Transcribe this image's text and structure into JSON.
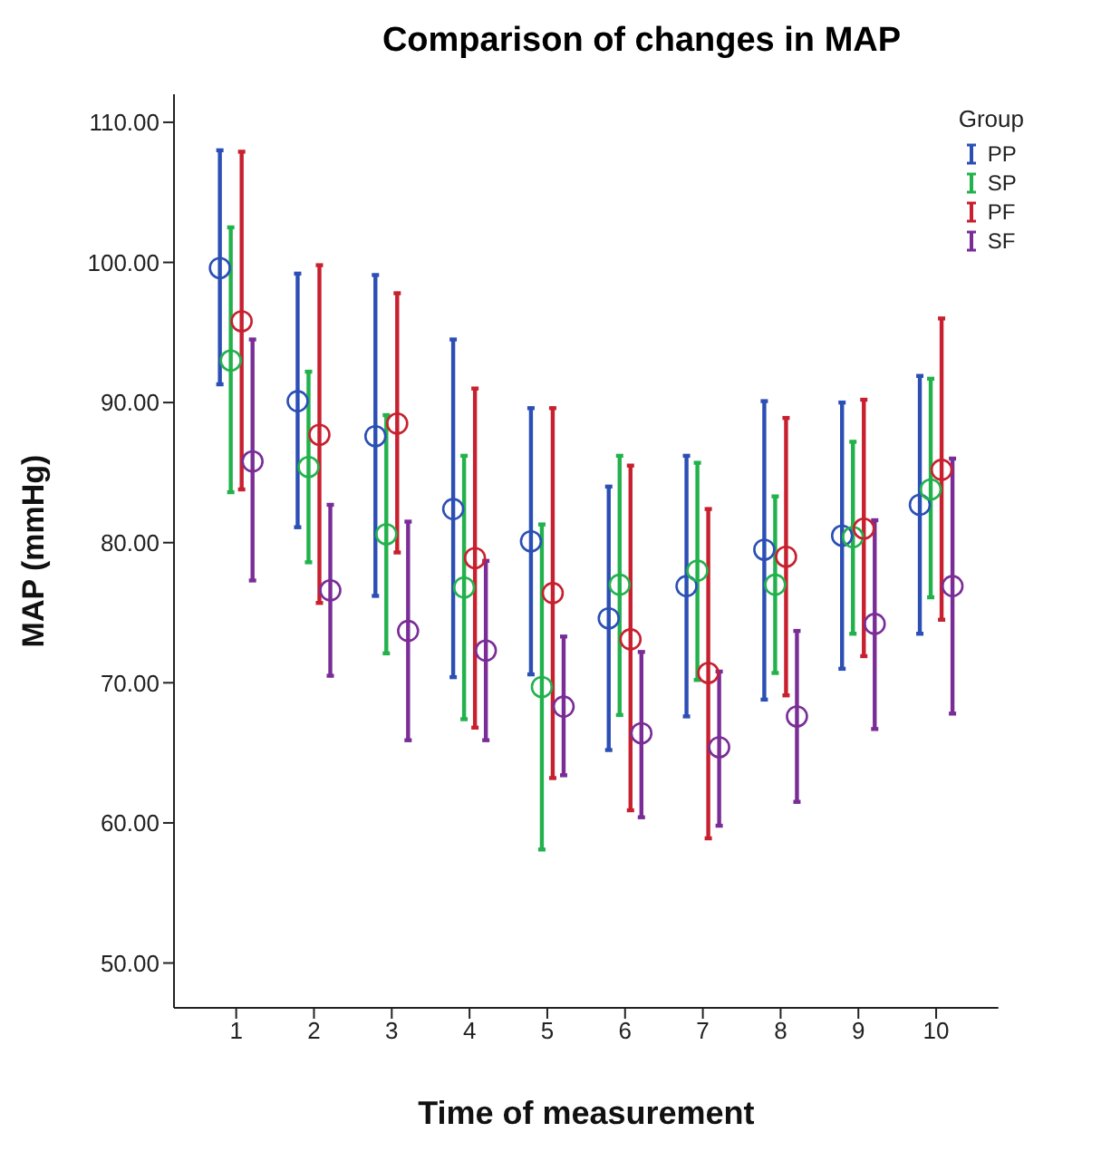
{
  "chart_data": {
    "type": "scatter",
    "title": "Comparison of changes in MAP",
    "xlabel": "Time of measurement",
    "ylabel": "MAP  (mmHg)",
    "legend_title": "Group",
    "legend": "top right",
    "marker": "circle",
    "grid": false,
    "categories": [
      "1",
      "2",
      "3",
      "4",
      "5",
      "6",
      "7",
      "8",
      "9",
      "10"
    ],
    "ylim": [
      46.8,
      112
    ],
    "yticks": [
      {
        "value": 50,
        "label": "50.00"
      },
      {
        "value": 60,
        "label": "60.00"
      },
      {
        "value": 70,
        "label": "70.00"
      },
      {
        "value": 80,
        "label": "80.00"
      },
      {
        "value": 90,
        "label": "90.00"
      },
      {
        "value": 100,
        "label": "100.00"
      },
      {
        "value": 110,
        "label": "110.00"
      }
    ],
    "series": [
      {
        "name": "PP",
        "color": "#2b4fb5",
        "values": [
          99.6,
          90.1,
          87.6,
          82.4,
          80.1,
          74.6,
          76.9,
          79.5,
          80.5,
          82.7
        ],
        "errors": [
          [
            91.3,
            108.0
          ],
          [
            81.1,
            99.2
          ],
          [
            76.2,
            99.1
          ],
          [
            70.4,
            94.5
          ],
          [
            70.6,
            89.6
          ],
          [
            65.2,
            84.0
          ],
          [
            67.6,
            86.2
          ],
          [
            68.8,
            90.1
          ],
          [
            71.0,
            90.0
          ],
          [
            73.5,
            91.9
          ]
        ]
      },
      {
        "name": "SP",
        "color": "#22b24c",
        "values": [
          93.0,
          85.4,
          80.6,
          76.8,
          69.7,
          77.0,
          78.0,
          77.0,
          80.4,
          83.8
        ],
        "errors": [
          [
            83.6,
            102.5
          ],
          [
            78.6,
            92.2
          ],
          [
            72.1,
            89.1
          ],
          [
            67.4,
            86.2
          ],
          [
            58.1,
            81.3
          ],
          [
            67.7,
            86.2
          ],
          [
            70.2,
            85.7
          ],
          [
            70.7,
            83.3
          ],
          [
            73.5,
            87.2
          ],
          [
            76.1,
            91.7
          ]
        ]
      },
      {
        "name": "PF",
        "color": "#c8202f",
        "values": [
          95.8,
          87.7,
          88.5,
          78.9,
          76.4,
          73.1,
          70.7,
          79.0,
          81.0,
          85.2
        ],
        "errors": [
          [
            83.8,
            107.9
          ],
          [
            75.7,
            99.8
          ],
          [
            79.3,
            97.8
          ],
          [
            66.8,
            91.0
          ],
          [
            63.2,
            89.6
          ],
          [
            60.9,
            85.5
          ],
          [
            58.9,
            82.4
          ],
          [
            69.1,
            88.9
          ],
          [
            71.9,
            90.2
          ],
          [
            74.5,
            96.0
          ]
        ]
      },
      {
        "name": "SF",
        "color": "#7a2d96",
        "values": [
          85.8,
          76.6,
          73.7,
          72.3,
          68.3,
          66.4,
          65.4,
          67.6,
          74.2,
          76.9
        ],
        "errors": [
          [
            77.3,
            94.5
          ],
          [
            70.5,
            82.7
          ],
          [
            65.9,
            81.5
          ],
          [
            65.9,
            78.7
          ],
          [
            63.4,
            73.3
          ],
          [
            60.4,
            72.2
          ],
          [
            59.8,
            70.8
          ],
          [
            61.5,
            73.7
          ],
          [
            66.7,
            81.6
          ],
          [
            67.8,
            86.0
          ]
        ]
      }
    ]
  }
}
